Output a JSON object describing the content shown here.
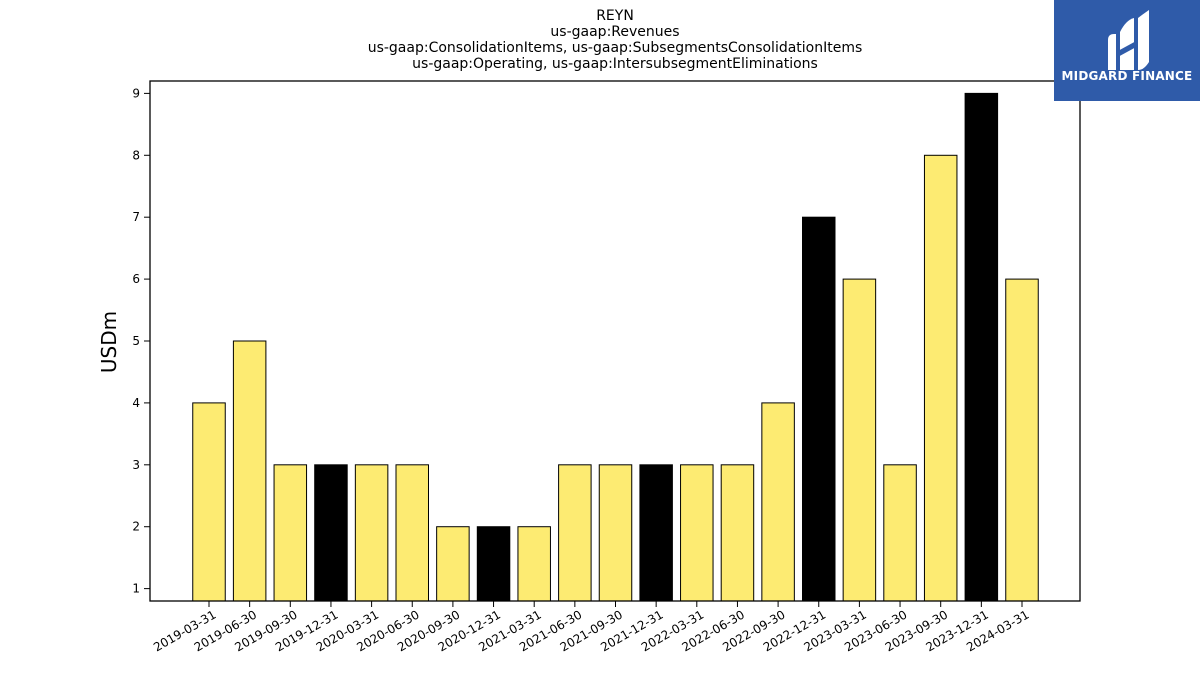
{
  "chart_data": {
    "type": "bar",
    "title_lines": [
      "REYN",
      "us-gaap:Revenues",
      "us-gaap:ConsolidationItems, us-gaap:SubsegmentsConsolidationItems",
      "us-gaap:Operating, us-gaap:IntersubsegmentEliminations"
    ],
    "xlabel": "",
    "ylabel": "USDm",
    "categories": [
      "2019-03-31",
      "2019-06-30",
      "2019-09-30",
      "2019-12-31",
      "2020-03-31",
      "2020-06-30",
      "2020-09-30",
      "2020-12-31",
      "2021-03-31",
      "2021-06-30",
      "2021-09-30",
      "2021-12-31",
      "2022-03-31",
      "2022-06-30",
      "2022-09-30",
      "2022-12-31",
      "2023-03-31",
      "2023-06-30",
      "2023-09-30",
      "2023-12-31",
      "2024-03-31"
    ],
    "values": [
      4,
      5,
      3,
      3,
      3,
      3,
      2,
      2,
      2,
      3,
      3,
      3,
      3,
      3,
      4,
      7,
      6,
      3,
      8,
      9,
      6
    ],
    "highlight": [
      false,
      false,
      false,
      true,
      false,
      false,
      false,
      true,
      false,
      false,
      false,
      true,
      false,
      false,
      false,
      true,
      false,
      false,
      false,
      true,
      false
    ],
    "yticks": [
      1,
      2,
      3,
      4,
      5,
      6,
      7,
      8,
      9
    ],
    "ylim": [
      0.8,
      9.2
    ],
    "grid": false,
    "colors": {
      "bar": "#fdeb72",
      "highlight": "#000000",
      "edge": "#000000"
    }
  },
  "logo": {
    "text": "MIDGARD FINANCE",
    "background": "#2f5ba9"
  }
}
